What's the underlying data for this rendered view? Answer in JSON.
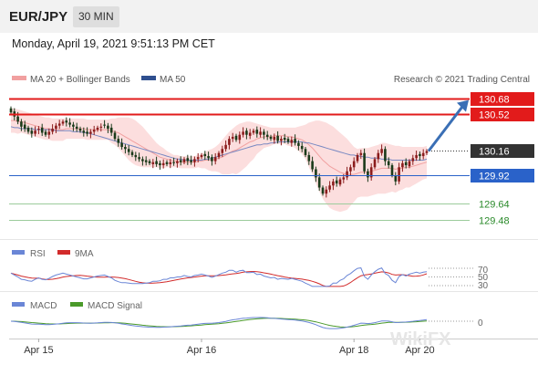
{
  "header": {
    "pair": "EUR/JPY",
    "timeframe": "30 MIN",
    "datetime": "Monday, April 19, 2021 9:51:13 PM CET"
  },
  "legend": {
    "bollinger": "MA 20 + Bollinger Bands",
    "ma50": "MA 50",
    "credit": "Research © 2021 Trading Central"
  },
  "colors": {
    "resistance": "#e21b1b",
    "support": "#2a62c9",
    "target": "#2a8a2a",
    "current": "#333333",
    "up_candle": "#8b1c1c",
    "down_candle": "#1a3a1a",
    "bollinger_fill": "#fbd8d8",
    "ma20": "#f1a0a0",
    "ma50": "#6a7fbf",
    "arrow": "#3a6fb5",
    "rsi": "#6a86d6",
    "rsi_ma": "#d22b2b",
    "macd": "#6a86d6",
    "macd_signal": "#4a9a2a"
  },
  "watermark": "WikiFX",
  "chart_data": {
    "type": "candlestick",
    "instrument": "EUR/JPY",
    "timeframe": "30 MIN",
    "ylim": [
      129.4,
      130.74
    ],
    "x_ticks": [
      "Apr 15",
      "Apr 16",
      "Apr 18",
      "Apr 20"
    ],
    "levels": [
      {
        "label": "130.68",
        "value": 130.68,
        "role": "target-resistance"
      },
      {
        "label": "130.52",
        "value": 130.52,
        "role": "resistance"
      },
      {
        "label": "130.16",
        "value": 130.16,
        "role": "current"
      },
      {
        "label": "129.92",
        "value": 129.92,
        "role": "support"
      },
      {
        "label": "129.64",
        "value": 129.64,
        "role": "target"
      },
      {
        "label": "129.48",
        "value": 129.48,
        "role": "target"
      }
    ],
    "close": [
      130.54,
      130.5,
      130.45,
      130.4,
      130.38,
      130.35,
      130.33,
      130.36,
      130.38,
      130.34,
      130.32,
      130.35,
      130.38,
      130.41,
      130.43,
      130.45,
      130.44,
      130.42,
      130.4,
      130.38,
      130.36,
      130.34,
      130.33,
      130.35,
      130.37,
      130.39,
      130.4,
      130.41,
      130.38,
      130.34,
      130.28,
      130.24,
      130.2,
      130.18,
      130.15,
      130.12,
      130.1,
      130.08,
      130.06,
      130.05,
      130.04,
      130.05,
      130.03,
      130.02,
      130.04,
      130.03,
      130.05,
      130.04,
      130.06,
      130.05,
      130.08,
      130.06,
      130.05,
      130.08,
      130.1,
      130.12,
      130.11,
      130.09,
      130.06,
      130.1,
      130.14,
      130.18,
      130.22,
      130.28,
      130.3,
      130.27,
      130.32,
      130.35,
      130.32,
      130.34,
      130.36,
      130.33,
      130.35,
      130.32,
      130.3,
      130.28,
      130.3,
      130.26,
      130.28,
      130.27,
      130.25,
      130.27,
      130.24,
      130.21,
      130.18,
      130.12,
      130.06,
      129.98,
      129.9,
      129.8,
      129.74,
      129.78,
      129.82,
      129.86,
      129.84,
      129.88,
      129.9,
      129.96,
      130.0,
      130.06,
      130.12,
      130.14,
      129.96,
      129.9,
      130.0,
      130.08,
      130.14,
      130.18,
      130.06,
      130.02,
      129.92,
      129.86,
      130.0,
      130.04,
      130.02,
      130.06,
      130.09,
      130.12,
      130.11,
      130.14,
      130.16
    ],
    "open": [
      130.58,
      130.55,
      130.5,
      130.45,
      130.42,
      130.39,
      130.36,
      130.33,
      130.37,
      130.39,
      130.35,
      130.32,
      130.35,
      130.38,
      130.41,
      130.43,
      130.46,
      130.44,
      130.42,
      130.4,
      130.38,
      130.36,
      130.35,
      130.33,
      130.35,
      130.37,
      130.39,
      130.42,
      130.41,
      130.39,
      130.34,
      130.28,
      130.24,
      130.2,
      130.18,
      130.15,
      130.12,
      130.1,
      130.08,
      130.07,
      130.06,
      130.03,
      130.06,
      130.04,
      130.02,
      130.05,
      130.03,
      130.05,
      130.04,
      130.07,
      130.05,
      130.09,
      130.07,
      130.05,
      130.08,
      130.1,
      130.13,
      130.11,
      130.1,
      130.06,
      130.1,
      130.14,
      130.18,
      130.22,
      130.28,
      130.31,
      130.27,
      130.32,
      130.36,
      130.31,
      130.34,
      130.37,
      130.32,
      130.35,
      130.32,
      130.3,
      130.27,
      130.31,
      130.26,
      130.29,
      130.28,
      130.24,
      130.28,
      130.24,
      130.21,
      130.18,
      130.12,
      130.06,
      129.98,
      129.9,
      129.8,
      129.74,
      129.78,
      129.82,
      129.87,
      129.83,
      129.88,
      129.9,
      129.96,
      130.0,
      130.06,
      130.12,
      130.14,
      129.96,
      129.9,
      130.0,
      130.08,
      130.14,
      130.18,
      130.06,
      130.02,
      129.92,
      129.86,
      130.0,
      130.05,
      130.01,
      130.06,
      130.09,
      130.13,
      130.11,
      130.14
    ],
    "ma20": [
      130.46,
      130.46,
      130.45,
      130.45,
      130.44,
      130.43,
      130.42,
      130.41,
      130.4,
      130.39,
      130.38,
      130.38,
      130.37,
      130.37,
      130.37,
      130.37,
      130.38,
      130.38,
      130.38,
      130.38,
      130.38,
      130.38,
      130.37,
      130.37,
      130.37,
      130.37,
      130.37,
      130.37,
      130.37,
      130.36,
      130.35,
      130.34,
      130.32,
      130.3,
      130.28,
      130.26,
      130.24,
      130.22,
      130.2,
      130.18,
      130.16,
      130.14,
      130.12,
      130.1,
      130.09,
      130.08,
      130.07,
      130.06,
      130.06,
      130.05,
      130.05,
      130.05,
      130.05,
      130.05,
      130.06,
      130.06,
      130.07,
      130.07,
      130.07,
      130.08,
      130.09,
      130.1,
      130.12,
      130.14,
      130.16,
      130.17,
      130.19,
      130.21,
      130.23,
      130.25,
      130.26,
      130.28,
      130.29,
      130.3,
      130.3,
      130.3,
      130.31,
      130.31,
      130.31,
      130.31,
      130.3,
      130.3,
      130.29,
      130.28,
      130.27,
      130.25,
      130.22,
      130.19,
      130.15,
      130.11,
      130.07,
      130.04,
      130.01,
      129.99,
      129.97,
      129.95,
      129.94,
      129.93,
      129.93,
      129.93,
      129.94,
      129.95,
      129.95,
      129.95,
      129.96,
      129.97,
      129.98,
      129.99,
      129.99,
      129.99,
      129.99,
      129.98,
      129.99,
      129.99,
      130.0,
      130.0,
      130.01,
      130.02,
      130.03,
      130.04,
      130.05
    ],
    "bb_upper": [
      130.58,
      130.58,
      130.57,
      130.56,
      130.55,
      130.54,
      130.53,
      130.52,
      130.51,
      130.5,
      130.49,
      130.49,
      130.48,
      130.48,
      130.48,
      130.48,
      130.48,
      130.48,
      130.48,
      130.48,
      130.48,
      130.48,
      130.47,
      130.47,
      130.47,
      130.47,
      130.47,
      130.47,
      130.47,
      130.48,
      130.48,
      130.49,
      130.49,
      130.49,
      130.49,
      130.48,
      130.46,
      130.43,
      130.4,
      130.36,
      130.32,
      130.28,
      130.24,
      130.21,
      130.19,
      130.16,
      130.14,
      130.12,
      130.12,
      130.11,
      130.11,
      130.11,
      130.11,
      130.11,
      130.12,
      130.13,
      130.15,
      130.17,
      130.18,
      130.2,
      130.23,
      130.27,
      130.31,
      130.35,
      130.38,
      130.41,
      130.43,
      130.44,
      130.45,
      130.45,
      130.44,
      130.43,
      130.42,
      130.41,
      130.4,
      130.39,
      130.39,
      130.39,
      130.39,
      130.39,
      130.39,
      130.39,
      130.39,
      130.4,
      130.41,
      130.42,
      130.44,
      130.45,
      130.46,
      130.46,
      130.45,
      130.44,
      130.42,
      130.4,
      130.37,
      130.34,
      130.31,
      130.28,
      130.24,
      130.2,
      130.18,
      130.19,
      130.19,
      130.19,
      130.2,
      130.21,
      130.22,
      130.24,
      130.24,
      130.23,
      130.22,
      130.21,
      130.21,
      130.2,
      130.2,
      130.2,
      130.2,
      130.2,
      130.2,
      130.2,
      130.21
    ],
    "bb_lower": [
      130.34,
      130.34,
      130.33,
      130.34,
      130.33,
      130.32,
      130.31,
      130.3,
      130.29,
      130.28,
      130.27,
      130.27,
      130.26,
      130.26,
      130.26,
      130.26,
      130.28,
      130.28,
      130.28,
      130.28,
      130.28,
      130.28,
      130.27,
      130.27,
      130.27,
      130.27,
      130.27,
      130.27,
      130.27,
      130.24,
      130.22,
      130.19,
      130.15,
      130.11,
      130.07,
      130.04,
      130.02,
      130.01,
      130.0,
      130.0,
      130.0,
      130.0,
      130.0,
      129.99,
      129.99,
      130.0,
      130.0,
      130.0,
      130.0,
      129.99,
      129.99,
      129.99,
      129.99,
      129.99,
      130.0,
      129.99,
      129.99,
      129.97,
      129.96,
      129.96,
      129.95,
      129.93,
      129.93,
      129.93,
      129.94,
      129.93,
      129.95,
      129.98,
      130.01,
      130.05,
      130.08,
      130.13,
      130.16,
      130.19,
      130.2,
      130.21,
      130.23,
      130.23,
      130.23,
      130.23,
      130.21,
      130.21,
      130.19,
      130.16,
      130.13,
      130.08,
      130.0,
      129.93,
      129.84,
      129.76,
      129.69,
      129.64,
      129.6,
      129.58,
      129.57,
      129.56,
      129.57,
      129.58,
      129.62,
      129.66,
      129.7,
      129.71,
      129.71,
      129.71,
      129.72,
      129.73,
      129.74,
      129.74,
      129.74,
      129.75,
      129.76,
      129.75,
      129.77,
      129.78,
      129.8,
      129.8,
      129.82,
      129.84,
      129.86,
      129.88,
      129.89
    ],
    "ma50": [
      130.4,
      130.39,
      130.39,
      130.38,
      130.38,
      130.38,
      130.38,
      130.37,
      130.37,
      130.37,
      130.37,
      130.37,
      130.37,
      130.36,
      130.36,
      130.36,
      130.36,
      130.36,
      130.35,
      130.35,
      130.35,
      130.34,
      130.34,
      130.33,
      130.32,
      130.31,
      130.3,
      130.29,
      130.28,
      130.27,
      130.26,
      130.25,
      130.24,
      130.23,
      130.22,
      130.21,
      130.2,
      130.19,
      130.18,
      130.17,
      130.16,
      130.15,
      130.14,
      130.13,
      130.12,
      130.11,
      130.1,
      130.09,
      130.08,
      130.08,
      130.07,
      130.07,
      130.07,
      130.07,
      130.07,
      130.07,
      130.08,
      130.08,
      130.09,
      130.1,
      130.11,
      130.12,
      130.13,
      130.14,
      130.15,
      130.16,
      130.17,
      130.18,
      130.19,
      130.2,
      130.21,
      130.22,
      130.22,
      130.23,
      130.23,
      130.24,
      130.24,
      130.25,
      130.25,
      130.25,
      130.25,
      130.25,
      130.25,
      130.25,
      130.25,
      130.24,
      130.24,
      130.23,
      130.22,
      130.21,
      130.2,
      130.19,
      130.18,
      130.17,
      130.16,
      130.15,
      130.14,
      130.13,
      130.12,
      130.12,
      130.11,
      130.11,
      130.1,
      130.1,
      130.09,
      130.09,
      130.09,
      130.08,
      130.08,
      130.08,
      130.07,
      130.07,
      130.07,
      130.07,
      130.07,
      130.07,
      130.07,
      130.07,
      130.07,
      130.07,
      130.08
    ],
    "rsi": {
      "levels": [
        70,
        50,
        30
      ]
    },
    "macd": {
      "levels": [
        0
      ]
    }
  },
  "indicators": {
    "rsi_label": "RSI",
    "rsi_ma_label": "9MA",
    "macd_label": "MACD",
    "macd_signal_label": "MACD Signal",
    "rsi_levels": [
      "70",
      "50",
      "30"
    ],
    "macd_zero": "0"
  }
}
